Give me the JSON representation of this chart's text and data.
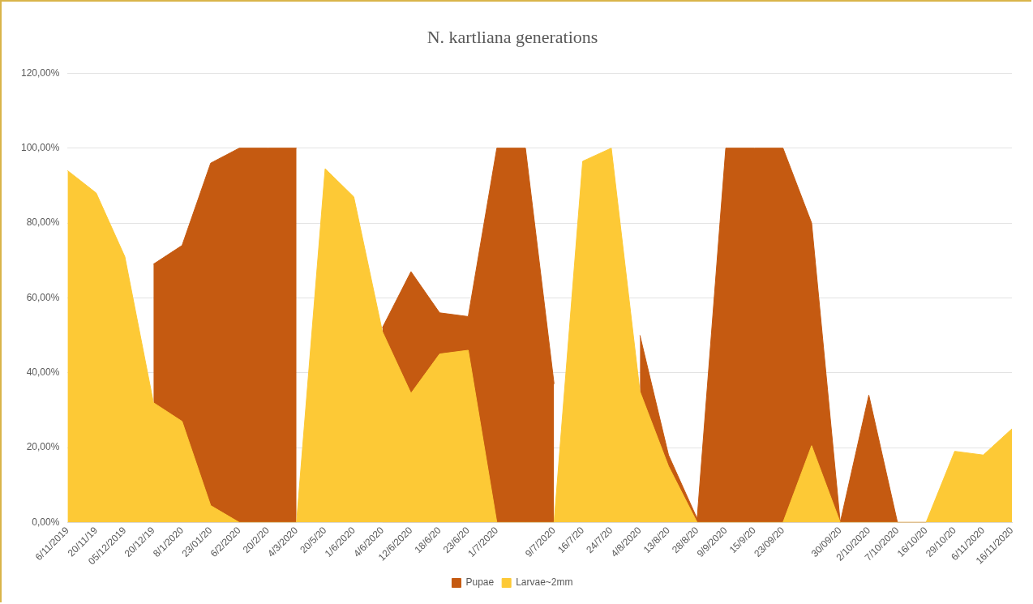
{
  "chart_data": {
    "type": "area",
    "title": "N. kartliana generations",
    "categories": [
      "6/11/2019",
      "20/11/19",
      "05/12/2019",
      "20/12/19",
      "8/1/2020",
      "23/01/20",
      "6/2/2020",
      "20/2/20",
      "4/3/2020",
      "20/5/20",
      "1/6/2020",
      "4/6/2020",
      "12/6/2020",
      "18/6/20",
      "23/6/20",
      "1/7/2020",
      null,
      "9/7/2020",
      "16/7/20",
      "24/7/20",
      "4/8/2020",
      "13/8/20",
      "28/8/20",
      "9/9/2020",
      "15/9/20",
      "23/09/20",
      null,
      "30/09/20",
      "2/10/2020",
      "7/10/2020",
      "16/10/20",
      "29/10/20",
      "6/11/2020",
      "16/11/2020"
    ],
    "series": [
      {
        "name": "Pupae",
        "color": "#c55a11",
        "values": [
          null,
          null,
          null,
          69,
          74,
          96,
          100,
          100,
          100,
          null,
          null,
          52,
          67,
          56,
          55,
          100,
          100,
          37,
          null,
          null,
          50,
          18,
          1,
          100,
          100,
          100,
          80,
          0,
          34,
          0,
          0,
          null,
          null,
          null
        ]
      },
      {
        "name": "Larvae~2mm",
        "color": "#fdc936",
        "values": [
          94,
          88,
          71,
          32,
          27,
          4.5,
          0,
          0,
          0,
          94.5,
          87,
          51,
          34.5,
          45,
          46,
          0,
          0,
          0,
          96.5,
          100,
          35,
          15,
          0,
          0,
          0,
          0,
          20.5,
          0,
          0,
          0,
          0,
          19,
          18,
          25
        ]
      }
    ],
    "ylim": [
      0,
      120
    ],
    "yticks": [
      {
        "value": 0,
        "label": "0,00%"
      },
      {
        "value": 20,
        "label": "20,00%"
      },
      {
        "value": 40,
        "label": "40,00%"
      },
      {
        "value": 60,
        "label": "60,00%"
      },
      {
        "value": 80,
        "label": "80,00%"
      },
      {
        "value": 100,
        "label": "100,00%"
      },
      {
        "value": 120,
        "label": "120,00%"
      }
    ],
    "grid": "y",
    "legend": "bottom"
  }
}
